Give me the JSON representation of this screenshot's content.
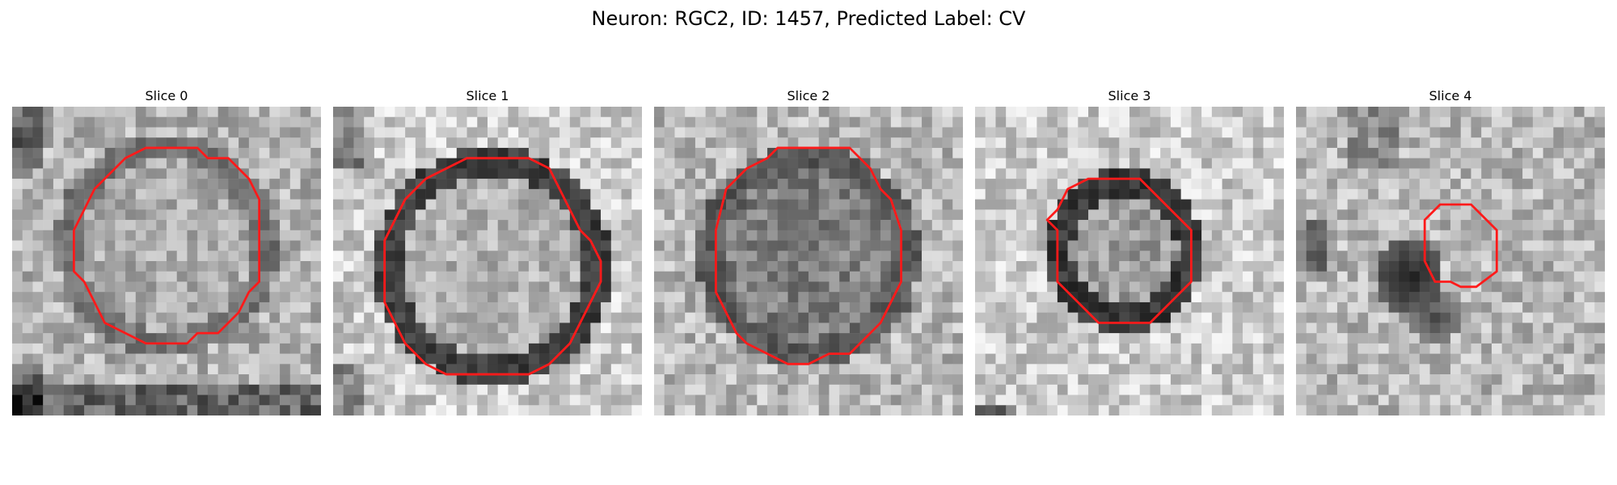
{
  "figure": {
    "title": "Neuron: RGC2, ID: 1457, Predicted Label: CV"
  },
  "panels": [
    {
      "title": "Slice 0"
    },
    {
      "title": "Slice 1"
    },
    {
      "title": "Slice 2"
    },
    {
      "title": "Slice 3"
    },
    {
      "title": "Slice 4"
    }
  ],
  "colors": {
    "contour": "#ff1a1a",
    "background": "#ffffff"
  }
}
